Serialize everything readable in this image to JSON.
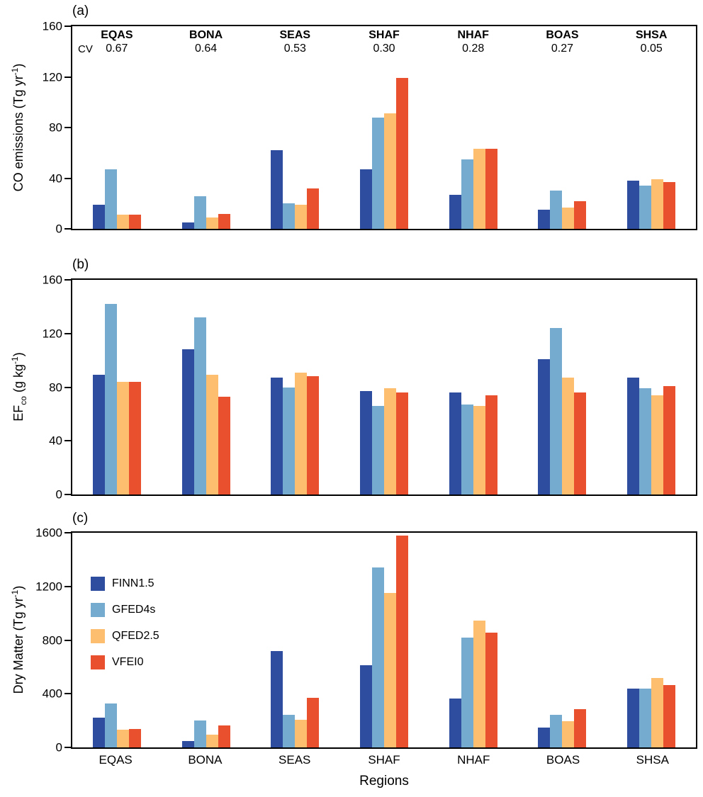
{
  "figure": {
    "xlabel": "Regions",
    "cv_label": "CV"
  },
  "panels": [
    {
      "tag": "(a)",
      "ylabel_parts": {
        "pre": "CO emissions (Tg yr",
        "sup": "-1",
        "end": ")"
      }
    },
    {
      "tag": "(b)",
      "ylabel_parts": {
        "pre": "EF",
        "sub": "co",
        "mid": " (g kg",
        "sup": "-1",
        "end": ")"
      }
    },
    {
      "tag": "(c)",
      "ylabel_parts": {
        "pre": "Dry Matter (Tg yr",
        "sup": "-1",
        "end": ")"
      }
    }
  ],
  "legend": {
    "position": "inside-left of panel (c)",
    "items": [
      {
        "label": "FINN1.5",
        "color": "#2e4d9e"
      },
      {
        "label": "GFED4s",
        "color": "#74abce"
      },
      {
        "label": "QFED2.5",
        "color": "#fdbe70"
      },
      {
        "label": "VFEI0",
        "color": "#e9502e"
      }
    ]
  },
  "chart_data": [
    {
      "panel": "a",
      "type": "bar",
      "title": "",
      "ylabel": "CO emissions (Tg yr-1)",
      "ylim": [
        0,
        160
      ],
      "yticks": [
        0,
        40,
        80,
        120,
        160
      ],
      "grid": false,
      "categories": [
        "EQAS",
        "BONA",
        "SEAS",
        "SHAF",
        "NHAF",
        "BOAS",
        "SHSA"
      ],
      "cv_label": "CV",
      "cv_values": [
        "0.67",
        "0.64",
        "0.53",
        "0.30",
        "0.28",
        "0.27",
        "0.05"
      ],
      "series": [
        {
          "name": "FINN1.5",
          "values": [
            19,
            5,
            62,
            47,
            27,
            15,
            38
          ]
        },
        {
          "name": "GFED4s",
          "values": [
            47,
            26,
            20,
            88,
            55,
            30,
            34
          ]
        },
        {
          "name": "QFED2.5",
          "values": [
            11,
            9,
            19,
            91,
            63,
            17,
            39
          ]
        },
        {
          "name": "VFEI0",
          "values": [
            11,
            12,
            32,
            119,
            63,
            22,
            37
          ]
        }
      ]
    },
    {
      "panel": "b",
      "type": "bar",
      "title": "",
      "ylabel": "EFco (g kg-1)",
      "ylim": [
        0,
        160
      ],
      "yticks": [
        0,
        40,
        80,
        120,
        160
      ],
      "grid": false,
      "categories": [
        "EQAS",
        "BONA",
        "SEAS",
        "SHAF",
        "NHAF",
        "BOAS",
        "SHSA"
      ],
      "series": [
        {
          "name": "FINN1.5",
          "values": [
            89,
            108,
            87,
            77,
            76,
            101,
            87
          ]
        },
        {
          "name": "GFED4s",
          "values": [
            142,
            132,
            80,
            66,
            67,
            124,
            79
          ]
        },
        {
          "name": "QFED2.5",
          "values": [
            84,
            89,
            91,
            79,
            66,
            87,
            74
          ]
        },
        {
          "name": "VFEI0",
          "values": [
            84,
            73,
            88,
            76,
            74,
            76,
            81
          ]
        }
      ]
    },
    {
      "panel": "c",
      "type": "bar",
      "title": "",
      "ylabel": "Dry Matter (Tg yr-1)",
      "xlabel": "Regions",
      "ylim": [
        0,
        1600
      ],
      "yticks": [
        0,
        400,
        800,
        1200,
        1600
      ],
      "grid": false,
      "legend_position": "inside-left",
      "categories": [
        "EQAS",
        "BONA",
        "SEAS",
        "SHAF",
        "NHAF",
        "BOAS",
        "SHSA"
      ],
      "series": [
        {
          "name": "FINN1.5",
          "values": [
            220,
            45,
            720,
            610,
            365,
            150,
            440
          ]
        },
        {
          "name": "GFED4s",
          "values": [
            330,
            200,
            245,
            1340,
            820,
            245,
            440
          ]
        },
        {
          "name": "QFED2.5",
          "values": [
            130,
            95,
            205,
            1150,
            945,
            195,
            520
          ]
        },
        {
          "name": "VFEI0",
          "values": [
            135,
            165,
            370,
            1580,
            855,
            285,
            465
          ]
        }
      ]
    }
  ]
}
